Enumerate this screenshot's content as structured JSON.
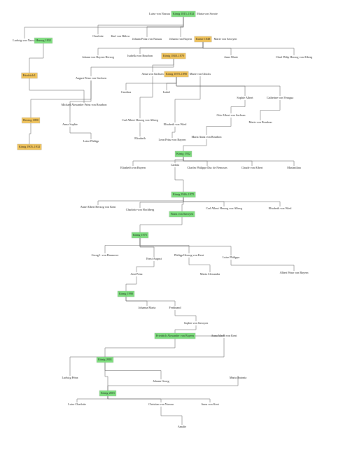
{
  "nodes": [
    {
      "label": "Luise von Nassau"
    },
    {
      "label": "König 1815–1832"
    },
    {
      "label": "Maria von Savoie"
    },
    {
      "label": "Ludwig von Nassau"
    },
    {
      "label": "Herzog 1832"
    },
    {
      "label": "Charlotte"
    },
    {
      "label": "Karl von Bülow"
    },
    {
      "label": "Johann Prinz von Nassau"
    },
    {
      "label": "Johann von Bayern"
    },
    {
      "label": "Kaiser 1848"
    },
    {
      "label": "Marie von Savoyen"
    },
    {
      "label": "Johann von Bayern Herzog"
    },
    {
      "label": "Isabella von Bourbon"
    },
    {
      "label": "König 1848–1870"
    },
    {
      "label": "Anne Marie"
    },
    {
      "label": "Charl Phlip Herzog von Alberg"
    },
    {
      "label": "Friedrich I."
    },
    {
      "label": "August Prinz von Sachsen"
    },
    {
      "label": "Anna von Sachsen"
    },
    {
      "label": "König 1870–1890"
    },
    {
      "label": "Marie von Glücks"
    },
    {
      "label": "Carolina"
    },
    {
      "label": "Isabel"
    },
    {
      "label": "Sophie Albert"
    },
    {
      "label": "Catherine von Veragua"
    },
    {
      "label": "Michael Alexander Prinz von Bourbon"
    },
    {
      "label": "Herzog 1890"
    },
    {
      "label": "Anna Sophie"
    },
    {
      "label": "Carl Albert Herzog von Alberg"
    },
    {
      "label": "Elisabeth von Wied"
    },
    {
      "label": "Otto Albert von Sachsen"
    },
    {
      "label": "Marie von Bourbon"
    },
    {
      "label": "König 1905–1932"
    },
    {
      "label": "Luise Philipp"
    },
    {
      "label": "Elisabeth"
    },
    {
      "label": "Leon Prinz von Bayern"
    },
    {
      "label": "Maria Anna von Bourbon"
    },
    {
      "label": "König 1932"
    },
    {
      "label": "Elisabeth von Bayern"
    },
    {
      "label": "Carlota"
    },
    {
      "label": "Charles Philippe Duc de Nemours"
    },
    {
      "label": "Claude von Albert"
    },
    {
      "label": "Maximilian"
    },
    {
      "label": "König 1946–1975"
    },
    {
      "label": "Anne Albert Herzog von Kent"
    },
    {
      "label": "Charlotte von Hochberg"
    },
    {
      "label": "Franz von Savoyen"
    },
    {
      "label": "Carl Albert Herzog von Alberg"
    },
    {
      "label": "Elisabeth von Wied"
    },
    {
      "label": "König 1975"
    },
    {
      "label": "Georg I. von Hannover"
    },
    {
      "label": "Ernst August"
    },
    {
      "label": "Philipp Herzog von Kent"
    },
    {
      "label": "Luise Philippa"
    },
    {
      "label": "Amt Prinz"
    },
    {
      "label": "Maria Alexandra"
    },
    {
      "label": "Albert Prinz von Bayern"
    },
    {
      "label": "König 1990"
    },
    {
      "label": "Johanna Maria"
    },
    {
      "label": "Ferdinand"
    },
    {
      "label": "Sophie von Savoyen"
    },
    {
      "label": "Friedrich Alexander von Bayern"
    },
    {
      "label": "Anna Maria von Kent"
    },
    {
      "label": "König 2001"
    },
    {
      "label": "Ludwig Prinz"
    },
    {
      "label": "Johann Georg"
    },
    {
      "label": "König 2015"
    },
    {
      "label": "Maria Antonia"
    },
    {
      "label": "Luise Charlotte"
    },
    {
      "label": "Christian von Nassau"
    },
    {
      "label": "Anna von Kent"
    },
    {
      "label": "Amalie"
    }
  ]
}
